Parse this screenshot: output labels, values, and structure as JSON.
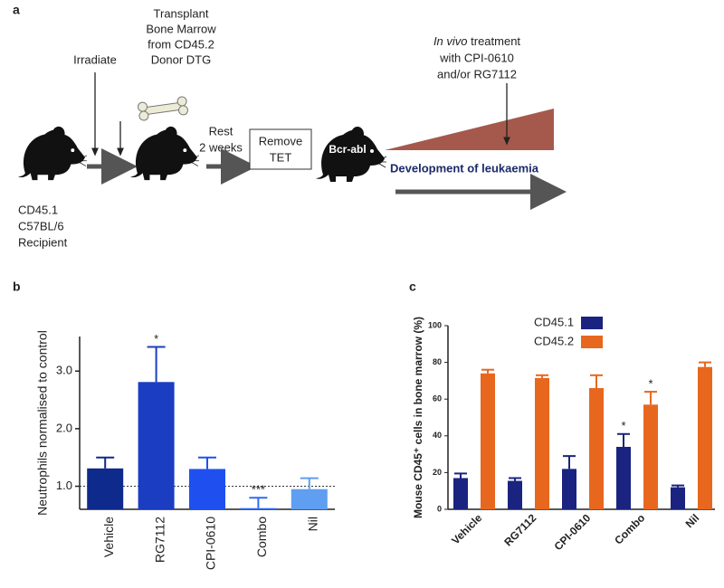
{
  "diagram": {
    "panel": "a",
    "irradiate": "Irradiate",
    "transplant": [
      "Transplant",
      "Bone Marrow",
      "from CD45.2",
      "Donor DTG"
    ],
    "rest": [
      "Rest",
      "2 weeks"
    ],
    "remove": [
      "Remove",
      "TET"
    ],
    "bcr_abl": "Bcr-abl",
    "treatment": [
      "In vivo",
      " treatment",
      "with CPI-0610",
      "and/or RG7112"
    ],
    "development": "Development of leukaemia",
    "recipient": [
      "CD45.1",
      "C57BL/6",
      "Recipient"
    ]
  },
  "chart_data": [
    {
      "type": "bar",
      "panel": "b",
      "y_label": "Neutrophils normalised to control",
      "categories": [
        "Vehicle",
        "RG7112",
        "CPI-0610",
        "Combo",
        "Nil"
      ],
      "values": [
        1.31,
        2.81,
        1.3,
        0.62,
        0.95
      ],
      "errors": [
        0.19,
        0.61,
        0.2,
        0.18,
        0.19
      ],
      "colors": [
        "#0e2a8c",
        "#1b3dc2",
        "#1f50ef",
        "#2d6cf5",
        "#5f9ef0"
      ],
      "significance": [
        null,
        "*",
        null,
        "***",
        null
      ],
      "reference_line": 1,
      "ylim": [
        0.6,
        3.6
      ],
      "yticks": [
        {
          "value": 1,
          "label": "1.0"
        },
        {
          "value": 2,
          "label": "2.0"
        },
        {
          "value": 3,
          "label": "3.0"
        }
      ]
    },
    {
      "type": "grouped_bar",
      "panel": "c",
      "y_label": "Mouse CD45⁺ cells in bone marrow (%)",
      "categories": [
        "Vehicle",
        "RG7112",
        "CPI-0610",
        "Combo",
        "Nil"
      ],
      "series": [
        {
          "name": "CD45.1",
          "color": "#1a2380",
          "values": [
            17,
            15.5,
            22,
            34,
            12
          ],
          "errors": [
            2.5,
            1.5,
            7,
            7,
            1
          ],
          "significance": [
            null,
            null,
            null,
            "*",
            null
          ]
        },
        {
          "name": "CD45.2",
          "color": "#e8671f",
          "values": [
            74,
            71.5,
            66,
            57,
            77.5
          ],
          "errors": [
            2,
            1.5,
            7,
            7,
            2.5
          ],
          "significance": [
            null,
            null,
            null,
            "*",
            null
          ]
        }
      ],
      "ylim": [
        0,
        100
      ],
      "yticks": [
        0,
        20,
        40,
        60,
        80,
        100
      ],
      "legend": "top-right"
    }
  ]
}
